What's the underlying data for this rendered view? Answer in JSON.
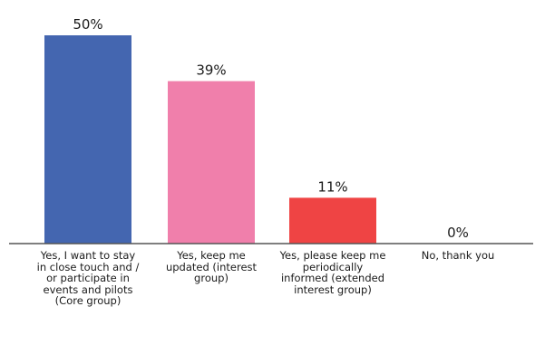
{
  "chart_data": {
    "type": "bar",
    "categories": [
      "Yes, I want to stay in close touch and / or participate in events and pilots (Core group)",
      "Yes, keep me updated (interest group)",
      "Yes, please keep me periodically informed (extended interest group)",
      "No, thank you"
    ],
    "values": [
      50,
      39,
      11,
      0
    ],
    "data_labels": [
      "50%",
      "39%",
      "11%",
      "0%"
    ],
    "colors": [
      "#4466b0",
      "#f07fab",
      "#ef4444",
      "#4466b0"
    ],
    "ylim": [
      0,
      50
    ],
    "grid": false,
    "legend": "none"
  }
}
